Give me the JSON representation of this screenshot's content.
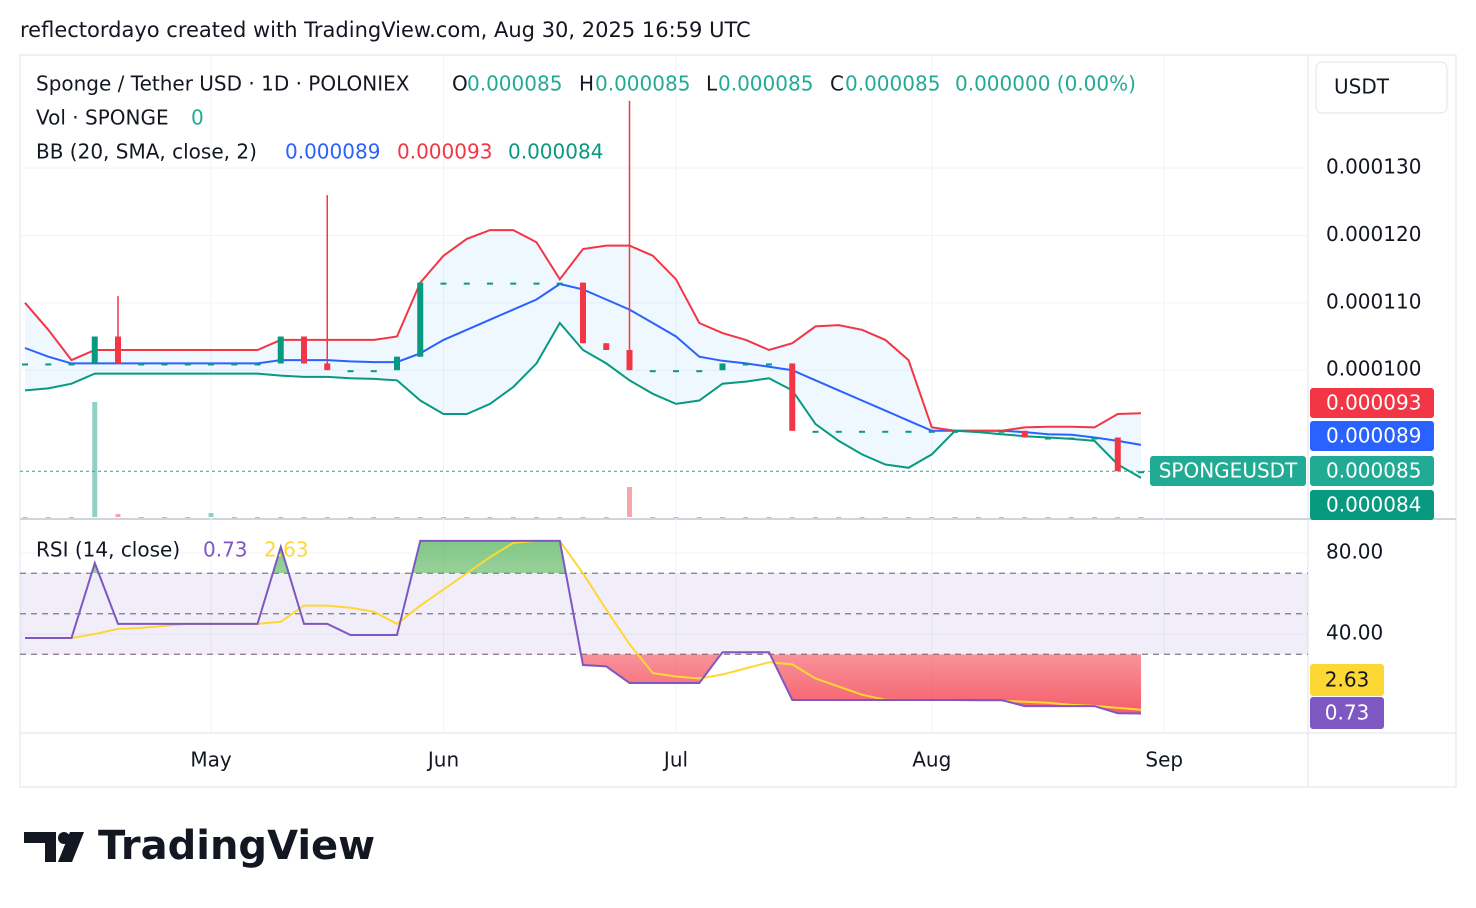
{
  "header": "reflectordayo created with TradingView.com, Aug 30, 2025 16:59 UTC",
  "brand": "TradingView",
  "chart_data": {
    "type": "candlestick",
    "currency": "USDT",
    "legend": {
      "symbol": "Sponge / Tether USD · 1D · POLONIEX",
      "open_label": "O",
      "open": 8.5e-05,
      "high_label": "H",
      "high": 8.5e-05,
      "low_label": "L",
      "low": 8.5e-05,
      "close_label": "C",
      "close": 8.5e-05,
      "change": "0.000000 (0.00%)",
      "volume_label": "Vol · SPONGE",
      "volume": 0,
      "bb_label": "BB (20, SMA, close, 2)",
      "bb_basis": 8.9e-05,
      "bb_upper": 9.3e-05,
      "bb_lower": 8.4e-05,
      "rsi_label": "RSI (14, close)",
      "rsi": 0.73,
      "rsi_ma": 2.63
    },
    "categories": [
      null,
      null,
      null,
      null,
      null,
      null,
      null,
      null,
      "May",
      null,
      null,
      null,
      null,
      null,
      null,
      null,
      null,
      null,
      "Jun",
      null,
      null,
      null,
      null,
      null,
      null,
      null,
      null,
      null,
      "Jul",
      null,
      null,
      null,
      null,
      null,
      null,
      null,
      null,
      null,
      null,
      "Aug",
      null,
      null,
      null,
      null,
      null,
      null,
      null,
      null,
      null,
      "Sep"
    ],
    "open": [
      0.000101,
      0.000101,
      0.000101,
      0.000101,
      0.000105,
      0.000101,
      0.000101,
      0.000101,
      0.000101,
      0.000101,
      0.000101,
      0.000101,
      0.000105,
      0.000101,
      0.0001,
      0.0001,
      0.0001,
      0.000102,
      0.000113,
      0.000113,
      0.000113,
      0.000113,
      0.000113,
      0.000113,
      0.000113,
      0.000104,
      0.000103,
      0.0001,
      0.0001,
      0.0001,
      0.0001,
      0.000101,
      0.000101,
      0.000101,
      9.1e-05,
      9.1e-05,
      9.1e-05,
      9.1e-05,
      9.1e-05,
      9.1e-05,
      9.1e-05,
      9.1e-05,
      9.1e-05,
      9.1e-05,
      9e-05,
      9e-05,
      9e-05,
      9e-05,
      8.5e-05,
      null
    ],
    "high": [
      0.000101,
      0.000101,
      0.000101,
      0.000105,
      0.000111,
      0.000101,
      0.000101,
      0.000101,
      0.000101,
      0.000101,
      0.000101,
      0.000105,
      0.000105,
      0.000126,
      0.0001,
      0.0001,
      0.000102,
      0.000113,
      0.000113,
      0.000113,
      0.000113,
      0.000113,
      0.000113,
      0.000113,
      0.000113,
      0.000104,
      0.00014,
      0.0001,
      0.0001,
      0.0001,
      0.000101,
      0.000101,
      0.000101,
      0.000101,
      9.1e-05,
      9.1e-05,
      9.1e-05,
      9.1e-05,
      9.1e-05,
      9.1e-05,
      9.1e-05,
      9.1e-05,
      9.1e-05,
      9.1e-05,
      9e-05,
      9e-05,
      9e-05,
      9e-05,
      8.5e-05,
      null
    ],
    "low": [
      0.000101,
      0.000101,
      0.000101,
      0.000101,
      0.000101,
      0.000101,
      0.000101,
      0.000101,
      0.000101,
      0.000101,
      0.000101,
      0.000101,
      0.000101,
      0.0001,
      0.0001,
      0.0001,
      0.0001,
      0.000102,
      0.000113,
      0.000113,
      0.000113,
      0.000113,
      0.000113,
      0.000113,
      0.000104,
      0.000103,
      0.0001,
      0.0001,
      0.0001,
      0.0001,
      0.0001,
      0.000101,
      0.000101,
      9.1e-05,
      9.1e-05,
      9.1e-05,
      9.1e-05,
      9.1e-05,
      9.1e-05,
      9.1e-05,
      9.1e-05,
      9.1e-05,
      9.1e-05,
      9e-05,
      9e-05,
      9e-05,
      9e-05,
      8.5e-05,
      8.5e-05,
      null
    ],
    "close": [
      0.000101,
      0.000101,
      0.000101,
      0.000105,
      0.000101,
      0.000101,
      0.000101,
      0.000101,
      0.000101,
      0.000101,
      0.000101,
      0.000105,
      0.000101,
      0.0001,
      0.0001,
      0.0001,
      0.000102,
      0.000113,
      0.000113,
      0.000113,
      0.000113,
      0.000113,
      0.000113,
      0.000113,
      0.000104,
      0.000103,
      0.0001,
      0.0001,
      0.0001,
      0.0001,
      0.000101,
      0.000101,
      0.000101,
      9.1e-05,
      9.1e-05,
      9.1e-05,
      9.1e-05,
      9.1e-05,
      9.1e-05,
      9.1e-05,
      9.1e-05,
      9.1e-05,
      9.1e-05,
      9e-05,
      9e-05,
      9e-05,
      9e-05,
      8.5e-05,
      8.5e-05,
      null
    ],
    "volume": [
      0,
      0,
      0,
      115,
      3,
      0,
      0,
      0,
      4,
      0,
      0,
      0,
      0,
      0,
      0,
      0,
      0,
      0,
      0,
      0,
      0,
      0,
      0,
      0,
      0,
      0,
      30,
      0,
      0,
      0,
      0,
      0,
      0,
      0,
      0,
      0,
      0,
      0,
      0,
      0,
      0,
      0,
      0,
      0,
      0,
      0,
      0,
      0,
      0,
      null
    ],
    "up_color": "#089981",
    "down_color": "#f23645",
    "bb": [
      {
        "name": "basis",
        "color": "#2962ff",
        "values": [
          0.0001033,
          0.000102,
          0.000101,
          0.000101,
          0.000101,
          0.000101,
          0.000101,
          0.000101,
          0.000101,
          0.000101,
          0.000101,
          0.0001015,
          0.0001015,
          0.0001015,
          0.0001013,
          0.0001012,
          0.0001012,
          0.0001025,
          0.0001045,
          0.000106,
          0.0001075,
          0.000109,
          0.0001105,
          0.0001128,
          0.000112,
          0.0001105,
          0.000109,
          0.000107,
          0.000105,
          0.000102,
          0.0001014,
          0.000101,
          0.0001005,
          0.0001,
          9.85e-05,
          9.7e-05,
          9.55e-05,
          9.4e-05,
          9.25e-05,
          9.1e-05,
          9.1e-05,
          9.1e-05,
          9.1e-05,
          9.08e-05,
          9.05e-05,
          9.04e-05,
          9e-05,
          8.95e-05,
          8.89e-05,
          null
        ]
      },
      {
        "name": "upper",
        "color": "#f23645",
        "values": [
          0.00011,
          0.000106,
          0.0001015,
          0.000103,
          0.000103,
          0.000103,
          0.000103,
          0.000103,
          0.000103,
          0.000103,
          0.000103,
          0.0001045,
          0.0001045,
          0.0001045,
          0.0001045,
          0.0001045,
          0.000105,
          0.000113,
          0.000117,
          0.0001195,
          0.0001208,
          0.0001208,
          0.000119,
          0.0001135,
          0.000118,
          0.0001185,
          0.0001185,
          0.000117,
          0.0001135,
          0.000107,
          0.0001055,
          0.0001045,
          0.000103,
          0.000104,
          0.0001065,
          0.0001067,
          0.000106,
          0.0001045,
          0.0001015,
          9.15e-05,
          9.1e-05,
          9.1e-05,
          9.1e-05,
          9.15e-05,
          9.16e-05,
          9.16e-05,
          9.15e-05,
          9.35e-05,
          9.36e-05,
          null
        ]
      },
      {
        "name": "lower",
        "color": "#089981",
        "values": [
          9.7e-05,
          9.73e-05,
          9.8e-05,
          9.95e-05,
          9.95e-05,
          9.95e-05,
          9.95e-05,
          9.95e-05,
          9.95e-05,
          9.95e-05,
          9.95e-05,
          9.92e-05,
          9.9e-05,
          9.9e-05,
          9.88e-05,
          9.87e-05,
          9.85e-05,
          9.55e-05,
          9.35e-05,
          9.35e-05,
          9.5e-05,
          9.75e-05,
          0.000101,
          0.000107,
          0.000103,
          0.000101,
          9.85e-05,
          9.65e-05,
          9.5e-05,
          9.55e-05,
          9.8e-05,
          9.83e-05,
          9.88e-05,
          9.7e-05,
          9.2e-05,
          8.95e-05,
          8.75e-05,
          8.6e-05,
          8.55e-05,
          8.75e-05,
          9.1e-05,
          9.08e-05,
          9.05e-05,
          9.02e-05,
          9e-05,
          8.98e-05,
          8.95e-05,
          8.6e-05,
          8.4e-05,
          null
        ]
      }
    ],
    "bb_fill": "#2196f3",
    "ylim": [
      7.82e-05,
      0.0001468
    ],
    "yticks": [
      {
        "value": 0.00013,
        "label": "0.000130"
      },
      {
        "value": 0.00012,
        "label": "0.000120"
      },
      {
        "value": 0.00011,
        "label": "0.000110"
      },
      {
        "value": 0.0001,
        "label": "0.000100"
      }
    ],
    "price_badges": [
      {
        "value": 9.3e-05,
        "color": "#f23645"
      },
      {
        "value": 8.9e-05,
        "color": "#2962ff"
      },
      {
        "value": 8.5e-05,
        "color": "#22ab94"
      },
      {
        "value": 8.4e-05,
        "color": "#089981"
      }
    ],
    "symbol_badge": "SPONGEUSDT",
    "rsi": {
      "series": [
        {
          "name": "RSI",
          "color": "#7e57c2",
          "values": [
            38,
            38,
            38,
            75,
            45,
            45,
            45,
            45,
            45,
            45,
            45,
            83,
            45,
            45,
            39.5,
            39.5,
            39.5,
            86,
            86,
            86,
            86,
            86,
            86,
            86,
            24.7,
            24,
            15.8,
            15.8,
            15.8,
            15.8,
            31,
            31,
            31,
            7.4,
            7.4,
            7.4,
            7.4,
            7.4,
            7.4,
            7.4,
            7.4,
            7.4,
            7.4,
            4.4,
            4.4,
            4.4,
            4.4,
            0.9,
            0.73,
            null
          ]
        },
        {
          "name": "MA",
          "color": "#fdd835",
          "values": [
            38,
            38,
            38,
            40,
            42.5,
            43,
            44,
            45,
            45,
            45,
            45,
            46,
            54,
            54,
            53,
            51,
            45,
            54,
            62,
            70,
            78,
            85,
            86,
            86,
            70,
            52,
            35,
            20.7,
            19,
            18,
            20,
            23,
            26,
            25,
            18,
            14,
            10,
            7.5,
            7.4,
            7.4,
            7.4,
            7,
            7,
            6.5,
            6,
            5,
            4.5,
            3.5,
            2.63,
            null
          ]
        }
      ],
      "ylim": [
        -8.9,
        96.3
      ],
      "yticks": [
        {
          "value": 80,
          "label": "80.00"
        },
        {
          "value": 40,
          "label": "40.00"
        }
      ],
      "bands": [
        70,
        50,
        30
      ],
      "overbought_color": "#4caf50",
      "oversold_color": "#f23645",
      "band_color": "#7e57c2"
    },
    "grid": true
  }
}
